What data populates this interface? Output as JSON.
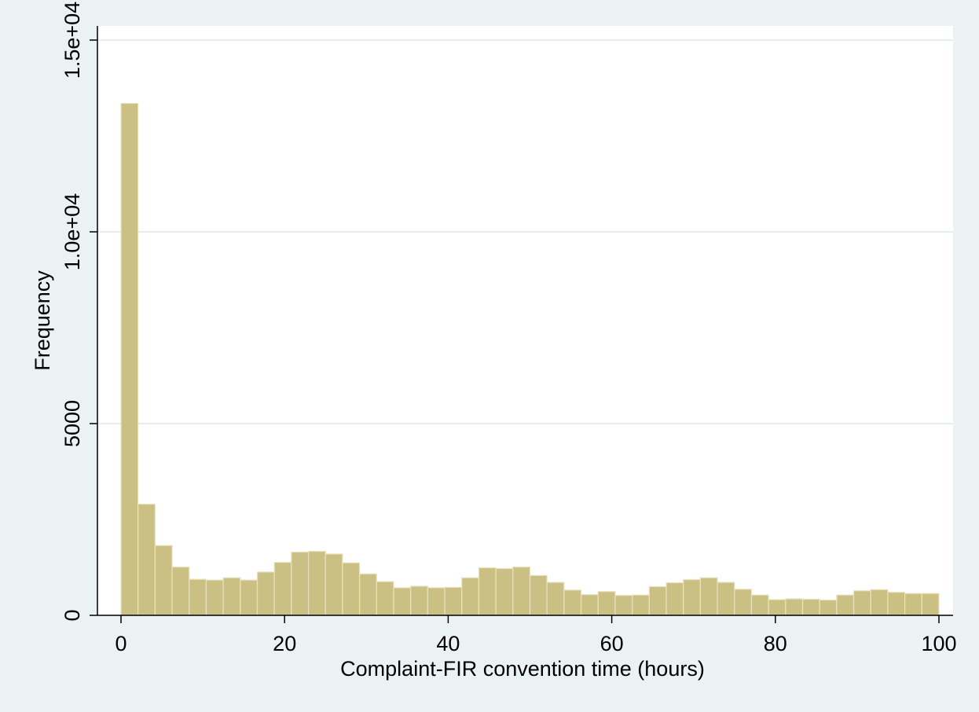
{
  "chart_data": {
    "type": "bar",
    "xlabel": "Complaint-FIR convention time (hours)",
    "ylabel": "Frequency",
    "xlim": [
      0,
      100
    ],
    "ylim": [
      0,
      15000
    ],
    "x_ticks": [
      0,
      20,
      40,
      60,
      80,
      100
    ],
    "y_ticks": [
      {
        "value": 0,
        "label": "0"
      },
      {
        "value": 5000,
        "label": "5000"
      },
      {
        "value": 10000,
        "label": "1.0e+04"
      },
      {
        "value": 15000,
        "label": "1.5e+04"
      }
    ],
    "grid": true,
    "bar_color": "#cbc084",
    "bin_width": 2.083,
    "bin_starts": [
      0,
      2.083,
      4.167,
      6.25,
      8.333,
      10.417,
      12.5,
      14.583,
      16.667,
      18.75,
      20.833,
      22.917,
      25,
      27.083,
      29.167,
      31.25,
      33.333,
      35.417,
      37.5,
      39.583,
      41.667,
      43.75,
      45.833,
      47.917,
      50,
      52.083,
      54.167,
      56.25,
      58.333,
      60.417,
      62.5,
      64.583,
      66.667,
      68.75,
      70.833,
      72.917,
      75,
      77.083,
      79.167,
      81.25,
      83.333,
      85.417,
      87.5,
      89.583,
      91.667,
      93.75,
      95.833,
      97.917
    ],
    "values": [
      13350,
      2900,
      1820,
      1260,
      940,
      920,
      980,
      920,
      1130,
      1380,
      1650,
      1670,
      1600,
      1370,
      1080,
      880,
      720,
      760,
      720,
      730,
      980,
      1240,
      1220,
      1260,
      1040,
      860,
      660,
      540,
      620,
      520,
      530,
      750,
      850,
      930,
      980,
      860,
      680,
      530,
      410,
      430,
      420,
      400,
      530,
      640,
      670,
      600,
      570,
      570
    ]
  }
}
